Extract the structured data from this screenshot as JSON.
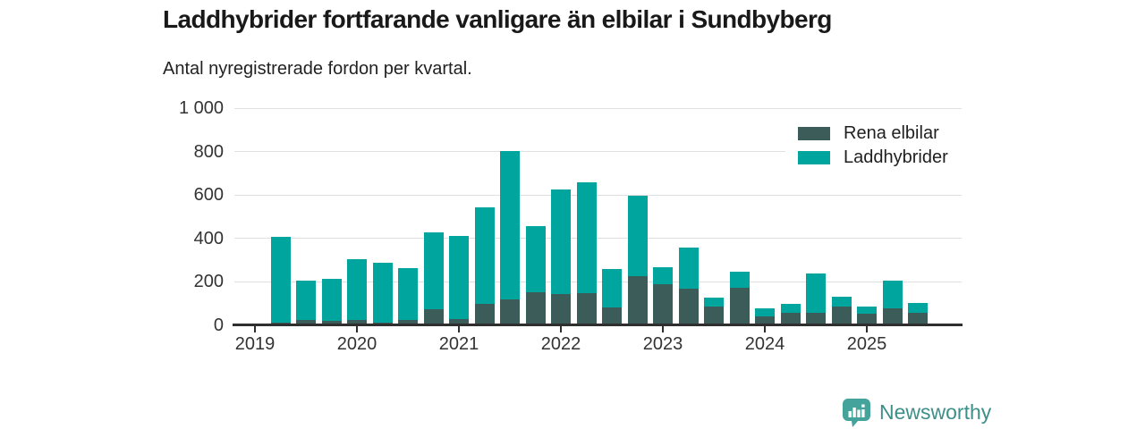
{
  "chart": {
    "title": "Laddhybrider fortfarande vanligare än elbilar i Sundbyberg",
    "subtitle": "Antal nyregistrerade fordon per kvartal.",
    "legend": [
      {
        "label": "Rena elbilar",
        "color": "#3b5c58"
      },
      {
        "label": "Laddhybrider",
        "color": "#00a69d"
      }
    ]
  },
  "chart_data": {
    "type": "bar",
    "stacked": true,
    "title": "Laddhybrider fortfarande vanligare än elbilar i Sundbyberg",
    "subtitle": "Antal nyregistrerade fordon per kvartal.",
    "x": [
      "2019 Q2",
      "2019 Q3",
      "2019 Q4",
      "2020 Q1",
      "2020 Q2",
      "2020 Q3",
      "2020 Q4",
      "2021 Q1",
      "2021 Q2",
      "2021 Q3",
      "2021 Q4",
      "2022 Q1",
      "2022 Q2",
      "2022 Q3",
      "2022 Q4",
      "2023 Q1",
      "2023 Q2",
      "2023 Q3",
      "2023 Q4",
      "2024 Q1",
      "2024 Q2",
      "2024 Q3",
      "2024 Q4",
      "2025 Q1",
      "2025 Q2",
      "2025 Q3"
    ],
    "series": [
      {
        "name": "Rena elbilar",
        "color": "#3b5c58",
        "values": [
          5,
          18,
          12,
          15,
          6,
          18,
          65,
          20,
          90,
          110,
          145,
          135,
          140,
          75,
          220,
          180,
          160,
          80,
          165,
          35,
          50,
          50,
          80,
          45,
          70,
          50
        ]
      },
      {
        "name": "Laddhybrider",
        "color": "#00a69d",
        "values": [
          395,
          182,
          193,
          283,
          274,
          237,
          355,
          385,
          445,
          685,
          305,
          485,
          510,
          175,
          370,
          80,
          190,
          40,
          75,
          35,
          40,
          180,
          45,
          35,
          130,
          45
        ]
      }
    ],
    "ylim": [
      0,
      1000
    ],
    "yticks": [
      0,
      200,
      400,
      600,
      800,
      1000
    ],
    "ytick_labels": [
      "0",
      "200",
      "400",
      "600",
      "800",
      "1 000"
    ],
    "xtick_years": [
      "2019",
      "2020",
      "2021",
      "2022",
      "2023",
      "2024",
      "2025"
    ],
    "grid": "horizontal",
    "legend_position": "top-right"
  },
  "footer": {
    "brand": "Newsworthy",
    "brand_color": "#3e8e89",
    "icon_color": "#44a49c"
  }
}
